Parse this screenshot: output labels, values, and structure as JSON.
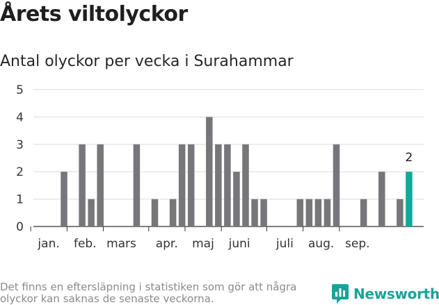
{
  "title": "Årets viltolyckor",
  "subtitle": "Antal olyckor per vecka i Surahammar",
  "footnote": "Det finns en eftersläpning i statistiken som gör att några olyckor kan saknas de senaste veckorna.",
  "brand": {
    "name": "Newsworthy",
    "icon": "newsworthy-logo-icon",
    "color": "#1aa39a"
  },
  "chart_data": {
    "type": "bar",
    "title": "Antal olyckor per vecka i Surahammar",
    "ylim": [
      0,
      5
    ],
    "y_ticks": [
      "0",
      "1",
      "2",
      "3",
      "4",
      "5"
    ],
    "grid": true,
    "legend": "none",
    "bar_color": "#76767b",
    "highlight_color": "#12a89a",
    "weeks": [
      1,
      2,
      3,
      4,
      5,
      6,
      7,
      8,
      9,
      10,
      11,
      12,
      13,
      14,
      15,
      16,
      17,
      18,
      19,
      20,
      21,
      22,
      23,
      24,
      25,
      26,
      27,
      28,
      29,
      30,
      31,
      32,
      33,
      34,
      35,
      36,
      37,
      38,
      39,
      40,
      41
    ],
    "values": [
      0,
      0,
      0,
      2,
      0,
      3,
      1,
      3,
      0,
      0,
      0,
      3,
      0,
      1,
      0,
      1,
      3,
      3,
      0,
      4,
      3,
      3,
      2,
      3,
      1,
      1,
      0,
      0,
      0,
      1,
      1,
      1,
      1,
      3,
      0,
      0,
      1,
      0,
      2,
      0,
      1
    ],
    "last": {
      "week": 42,
      "value": 2,
      "label": "2"
    },
    "months": [
      {
        "label": "jan.",
        "start_week": 1
      },
      {
        "label": "feb.",
        "start_week": 5
      },
      {
        "label": "mars",
        "start_week": 9
      },
      {
        "label": "apr.",
        "start_week": 14
      },
      {
        "label": "maj",
        "start_week": 18
      },
      {
        "label": "juni",
        "start_week": 22
      },
      {
        "label": "juli",
        "start_week": 27
      },
      {
        "label": "aug.",
        "start_week": 31
      },
      {
        "label": "sep.",
        "start_week": 35
      }
    ]
  }
}
